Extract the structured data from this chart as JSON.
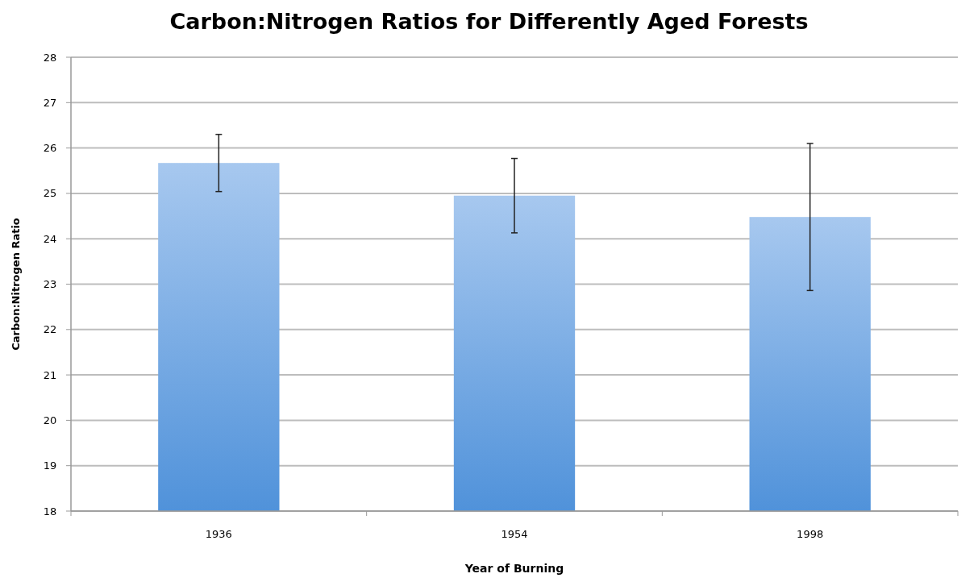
{
  "chart_data": {
    "type": "bar",
    "title": "Carbon:Nitrogen Ratios for Differently Aged Forests",
    "xlabel": "Year of Burning",
    "ylabel": "Carbon:Nitrogen Ratio",
    "categories": [
      "1936",
      "1954",
      "1998"
    ],
    "values": [
      25.67,
      24.95,
      24.48
    ],
    "errors": [
      0.63,
      0.82,
      1.62
    ],
    "color": "#78aae6",
    "ylim": [
      18,
      28
    ],
    "yticks": [
      18,
      19,
      20,
      21,
      22,
      23,
      24,
      25,
      26,
      27,
      28
    ],
    "grid": "y"
  }
}
